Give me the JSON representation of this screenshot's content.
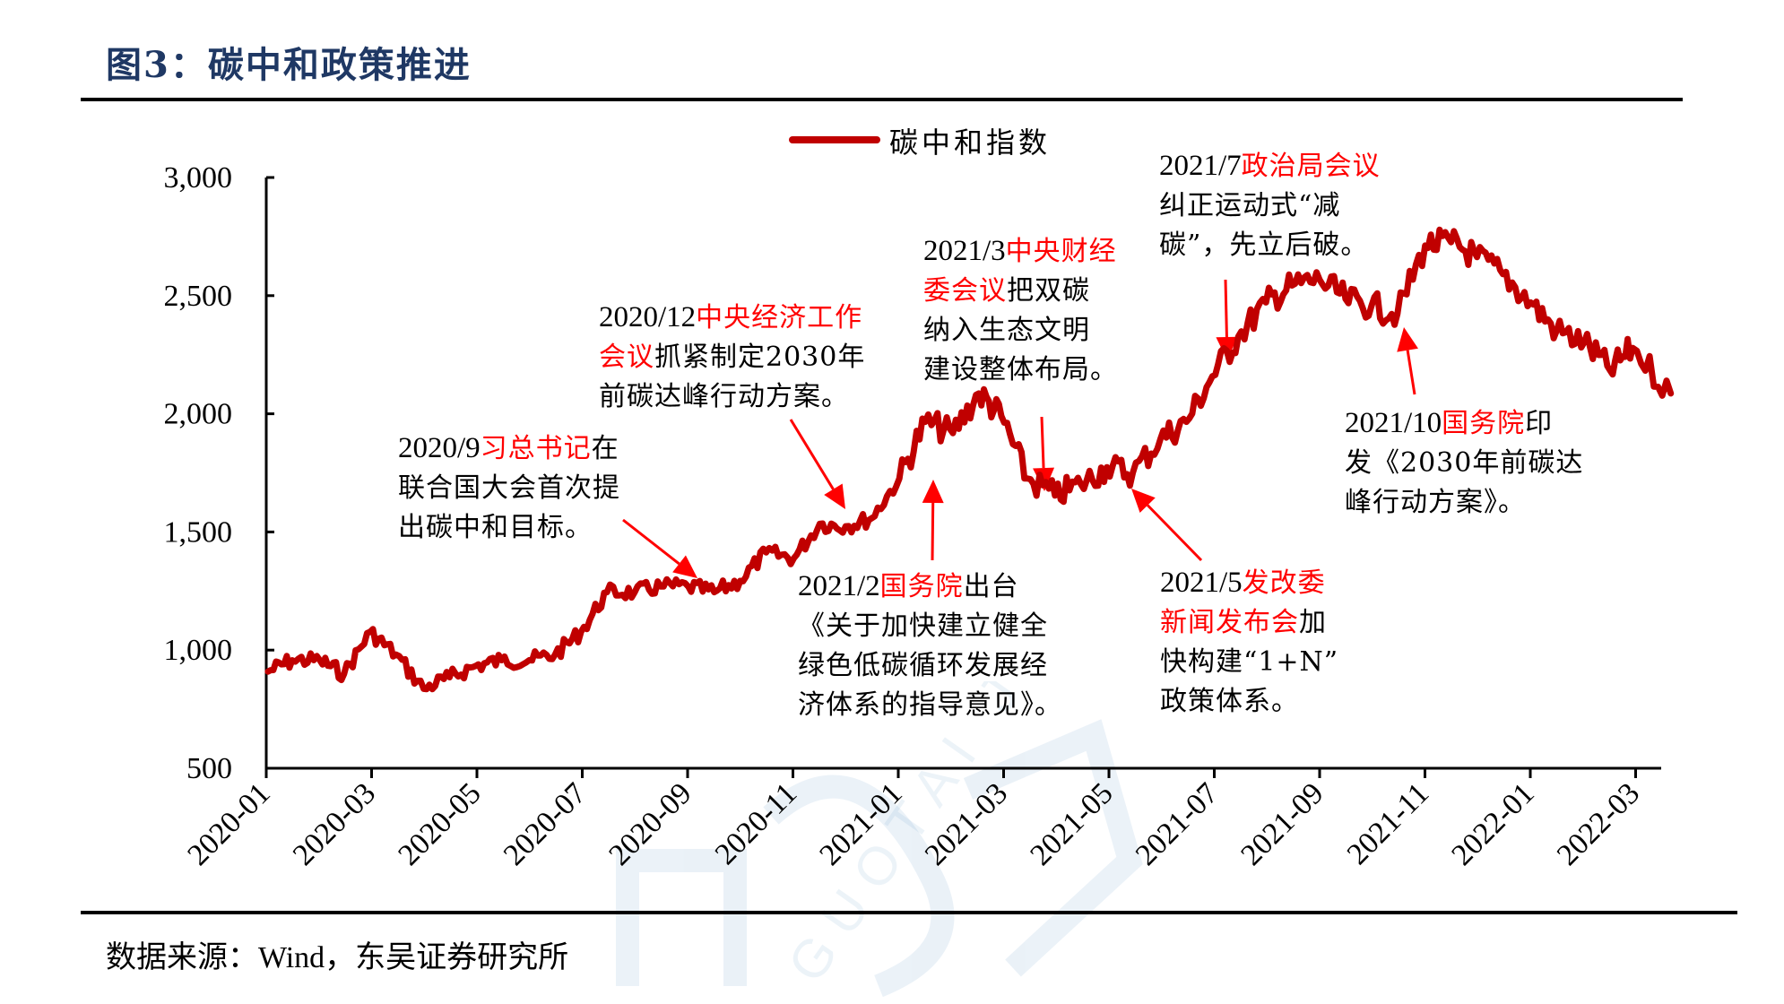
{
  "title": "图3：碳中和政策推进",
  "source": "数据来源：Wind，东吴证券研究所",
  "watermark": "国泰君安 GUOTAI JUNAN",
  "colors": {
    "line": "#c00000",
    "highlight": "#ff0000",
    "title": "#1f3864",
    "arrow": "#ff0000"
  },
  "chart_data": {
    "type": "line",
    "title": "图3：碳中和政策推进",
    "xlabel": "",
    "ylabel": "",
    "ylim": [
      500,
      3000
    ],
    "yticks": [
      500,
      1000,
      1500,
      2000,
      2500,
      3000
    ],
    "ytick_labels": [
      "500",
      "1,000",
      "1,500",
      "2,000",
      "2,500",
      "3,000"
    ],
    "xticks": [
      "2020-01",
      "2020-03",
      "2020-05",
      "2020-07",
      "2020-09",
      "2020-11",
      "2021-01",
      "2021-03",
      "2021-05",
      "2021-07",
      "2021-09",
      "2021-11",
      "2022-01",
      "2022-03"
    ],
    "grid": false,
    "legend": {
      "position": "top-center",
      "entries": [
        "碳中和指数"
      ]
    },
    "series": [
      {
        "name": "碳中和指数",
        "x": [
          "2020-01-02",
          "2020-01-16",
          "2020-02-01",
          "2020-02-15",
          "2020-03-01",
          "2020-03-16",
          "2020-04-01",
          "2020-04-16",
          "2020-05-01",
          "2020-05-16",
          "2020-06-01",
          "2020-06-16",
          "2020-07-01",
          "2020-07-16",
          "2020-08-01",
          "2020-08-16",
          "2020-09-01",
          "2020-09-16",
          "2020-10-01",
          "2020-10-16",
          "2020-11-01",
          "2020-11-16",
          "2020-12-01",
          "2020-12-16",
          "2021-01-01",
          "2021-01-16",
          "2021-02-01",
          "2021-02-16",
          "2021-03-01",
          "2021-03-16",
          "2021-04-01",
          "2021-04-16",
          "2021-05-01",
          "2021-05-16",
          "2021-06-01",
          "2021-06-16",
          "2021-07-01",
          "2021-07-16",
          "2021-08-01",
          "2021-08-16",
          "2021-09-01",
          "2021-09-16",
          "2021-10-01",
          "2021-10-16",
          "2021-11-01",
          "2021-11-16",
          "2021-12-01",
          "2021-12-16",
          "2022-01-01",
          "2022-01-16",
          "2022-02-01",
          "2022-02-16",
          "2022-03-01",
          "2022-03-23"
        ],
        "values": [
          909,
          957,
          957,
          899,
          1077,
          981,
          836,
          885,
          933,
          957,
          957,
          981,
          1077,
          1245,
          1245,
          1269,
          1269,
          1245,
          1293,
          1413,
          1389,
          1534,
          1524,
          1558,
          1726,
          1966,
          1918,
          2086,
          1990,
          1726,
          1654,
          1702,
          1774,
          1750,
          1894,
          1966,
          2159,
          2327,
          2471,
          2543,
          2567,
          2486,
          2457,
          2423,
          2712,
          2726,
          2663,
          2591,
          2471,
          2351,
          2303,
          2183,
          2279,
          2086
        ]
      }
    ],
    "annotations": [
      {
        "id": "a1",
        "date_prefix": "2020/9",
        "highlight": "习总书记",
        "lines": [
          "在",
          "联合国大会首次提",
          "出碳中和目标。"
        ]
      },
      {
        "id": "a2",
        "date_prefix": "2020/12",
        "highlight": "中央经济工作",
        "highlight2": "会议",
        "lines": [
          "抓紧制定2030年",
          "前碳达峰行动方案。"
        ]
      },
      {
        "id": "a3",
        "date_prefix": "2021/2",
        "highlight": "国务院",
        "lines": [
          "出台",
          "《关于加快建立健全",
          "绿色低碳循环发展经",
          "济体系的指导意见》。"
        ]
      },
      {
        "id": "a4",
        "date_prefix": "2021/3",
        "highlight": "中央财经",
        "highlight2": "委会议",
        "lines": [
          "把双碳",
          "纳入生态文明",
          "建设整体布局。"
        ]
      },
      {
        "id": "a5",
        "date_prefix": "2021/5",
        "highlight": "发改委",
        "highlight2": "新闻发布会",
        "lines": [
          "加",
          "快构建“1+N”",
          "政策体系。"
        ]
      },
      {
        "id": "a6",
        "date_prefix": "2021/7",
        "highlight": "政治局会议",
        "lines": [
          "纠正运动式“减",
          "碳”，先立后破。"
        ]
      },
      {
        "id": "a7",
        "date_prefix": "2021/10",
        "highlight": "国务院",
        "lines": [
          "印",
          "发《2030年前碳达",
          "峰行动方案》。"
        ]
      }
    ]
  }
}
